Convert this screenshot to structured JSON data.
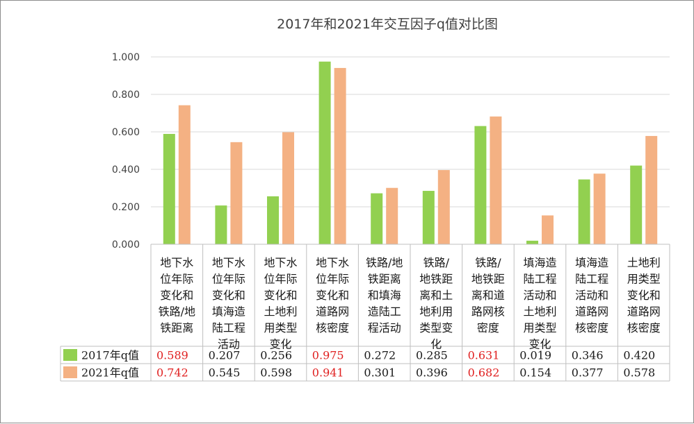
{
  "chart_data": {
    "type": "bar",
    "title": "2017年和2021年交互因子q值对比图",
    "ylim": [
      0,
      1
    ],
    "yticks": [
      "0.000",
      "0.200",
      "0.400",
      "0.600",
      "0.800",
      "1.000"
    ],
    "categories": [
      [
        "地下水",
        "位年际",
        "变化和",
        "铁路/地",
        "铁距离"
      ],
      [
        "地下水",
        "位年际",
        "变化和",
        "填海造",
        "陆工程",
        "活动"
      ],
      [
        "地下水",
        "位年际",
        "变化和",
        "土地利",
        "用类型",
        "变化"
      ],
      [
        "地下水",
        "位年际",
        "变化和",
        "道路网",
        "核密度"
      ],
      [
        "铁路/地",
        "铁距离",
        "和填海",
        "造陆工",
        "程活动"
      ],
      [
        "铁路/",
        "地铁距",
        "离和土",
        "地利用",
        "类型变",
        "化"
      ],
      [
        "铁路/",
        "地铁距",
        "离和道",
        "路网核",
        "密度"
      ],
      [
        "填海造",
        "陆工程",
        "活动和",
        "土地利",
        "用类型",
        "变化"
      ],
      [
        "填海造",
        "陆工程",
        "活动和",
        "道路网",
        "核密度"
      ],
      [
        "土地利",
        "用类型",
        "变化和",
        "道路网",
        "核密度"
      ]
    ],
    "series": [
      {
        "name": "2017年q值",
        "color": "#92d050",
        "values": [
          0.589,
          0.207,
          0.256,
          0.975,
          0.272,
          0.285,
          0.631,
          0.019,
          0.346,
          0.42
        ],
        "labels": [
          "0.589",
          "0.207",
          "0.256",
          "0.975",
          "0.272",
          "0.285",
          "0.631",
          "0.019",
          "0.346",
          "0.420"
        ]
      },
      {
        "name": "2021年q值",
        "color": "#f4b183",
        "values": [
          0.742,
          0.545,
          0.598,
          0.941,
          0.301,
          0.396,
          0.682,
          0.154,
          0.377,
          0.578
        ],
        "labels": [
          "0.742",
          "0.545",
          "0.598",
          "0.941",
          "0.301",
          "0.396",
          "0.682",
          "0.154",
          "0.377",
          "0.578"
        ]
      }
    ],
    "highlight_columns": [
      0,
      3,
      6
    ],
    "highlight_color": "#e02020",
    "grid": true,
    "legend": "data-table"
  }
}
